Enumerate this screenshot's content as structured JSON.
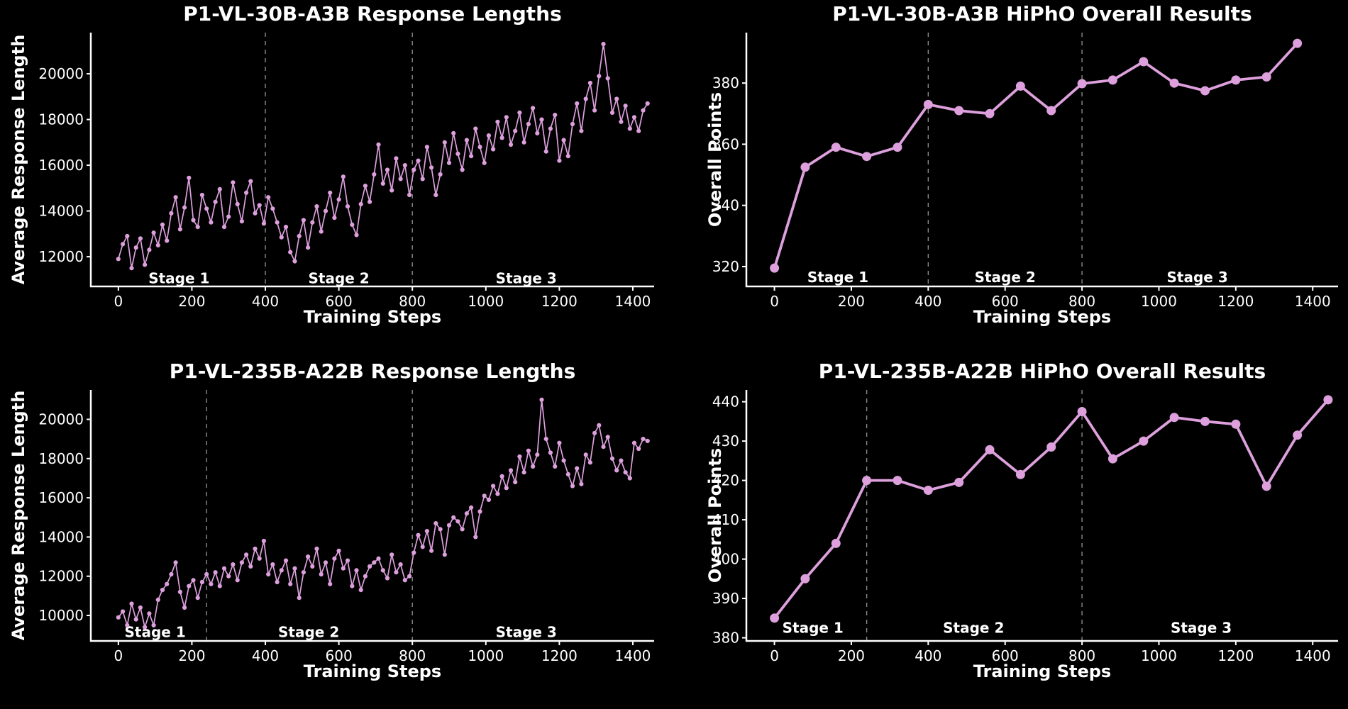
{
  "figure": {
    "background": "#000000",
    "text_color": "#ffffff",
    "accent_color": "#DDA0DD",
    "divider_color": "#8a8a8a"
  },
  "chart_data": [
    {
      "type": "line",
      "title": "P1-VL-30B-A3B Response Lengths",
      "xlabel": "Training Steps",
      "ylabel": "Average Response Length",
      "line_color": "#DDA0DD",
      "divider_color": "#8a8a8a",
      "grid": false,
      "x_ticks": [
        0,
        200,
        400,
        600,
        800,
        1000,
        1200,
        1400
      ],
      "y_ticks": [
        12000,
        14000,
        16000,
        18000,
        20000
      ],
      "xlim": [
        -75,
        1458
      ],
      "ylim": [
        10700,
        21800
      ],
      "stage_lines": [
        400,
        800
      ],
      "stage_labels": [
        {
          "text": "Stage 1",
          "x": 165,
          "y": 11050
        },
        {
          "text": "Stage 2",
          "x": 600,
          "y": 11050
        },
        {
          "text": "Stage 3",
          "x": 1110,
          "y": 11050
        }
      ],
      "marker_radius": 3.1,
      "line_width": 1.7,
      "x_start": 0,
      "x_step": 12,
      "values": [
        11900,
        12550,
        12900,
        11500,
        12400,
        12800,
        11650,
        12300,
        13050,
        12500,
        13400,
        12700,
        13900,
        14600,
        13200,
        14150,
        15450,
        13600,
        13300,
        14700,
        14100,
        13500,
        14400,
        14950,
        13300,
        13750,
        15250,
        14300,
        13550,
        14800,
        15300,
        13900,
        14250,
        13450,
        14600,
        14100,
        13500,
        12850,
        13300,
        12200,
        11800,
        12900,
        13600,
        12400,
        13500,
        14200,
        13100,
        14000,
        14800,
        13700,
        14500,
        15500,
        14200,
        13400,
        12950,
        14300,
        15100,
        14400,
        15600,
        16900,
        15200,
        15800,
        14900,
        16300,
        15400,
        16000,
        14700,
        15800,
        16200,
        15400,
        16800,
        15900,
        14700,
        15600,
        17000,
        16100,
        17400,
        16500,
        15800,
        17100,
        16400,
        17600,
        16800,
        16100,
        17300,
        16700,
        17900,
        17200,
        18100,
        16900,
        17500,
        18300,
        17000,
        17800,
        18500,
        17400,
        18000,
        16600,
        17600,
        18200,
        16200,
        17100,
        16400,
        17800,
        18700,
        17500,
        18900,
        19600,
        18400,
        19900,
        21300,
        19800,
        18300,
        18900,
        17900,
        18600,
        17600,
        18100,
        17500,
        18400,
        18700
      ]
    },
    {
      "type": "line",
      "title": "P1-VL-30B-A3B HiPhO Overall Results",
      "xlabel": "Training Steps",
      "ylabel": "Overall Points",
      "line_color": "#DDA0DD",
      "divider_color": "#8a8a8a",
      "grid": false,
      "x_ticks": [
        0,
        200,
        400,
        600,
        800,
        1000,
        1200,
        1400
      ],
      "y_ticks": [
        320,
        340,
        360,
        380
      ],
      "xlim": [
        -73,
        1466
      ],
      "ylim": [
        313.5,
        396.5
      ],
      "stage_lines": [
        400,
        800
      ],
      "stage_labels": [
        {
          "text": "Stage 1",
          "x": 165,
          "y": 316.5
        },
        {
          "text": "Stage 2",
          "x": 600,
          "y": 316.5
        },
        {
          "text": "Stage 3",
          "x": 1100,
          "y": 316.5
        }
      ],
      "marker_radius": 6.5,
      "line_width": 3.8,
      "x": [
        0,
        80,
        160,
        240,
        320,
        400,
        480,
        560,
        640,
        720,
        800,
        880,
        960,
        1040,
        1120,
        1200,
        1280,
        1360
      ],
      "values": [
        319.5,
        352.5,
        359,
        356,
        359,
        373,
        371,
        370,
        379,
        371,
        379.8,
        381,
        387,
        380,
        377.5,
        381,
        382,
        393
      ]
    },
    {
      "type": "line",
      "title": "P1-VL-235B-A22B Response Lengths",
      "xlabel": "Training Steps",
      "ylabel": "Average Response Length",
      "line_color": "#DDA0DD",
      "divider_color": "#8a8a8a",
      "grid": false,
      "x_ticks": [
        0,
        200,
        400,
        600,
        800,
        1000,
        1200,
        1400
      ],
      "y_ticks": [
        10000,
        12000,
        14000,
        16000,
        18000,
        20000
      ],
      "xlim": [
        -75,
        1458
      ],
      "ylim": [
        8700,
        21500
      ],
      "stage_lines": [
        240,
        800
      ],
      "stage_labels": [
        {
          "text": "Stage 1",
          "x": 100,
          "y": 9150
        },
        {
          "text": "Stage 2",
          "x": 518,
          "y": 9150
        },
        {
          "text": "Stage 3",
          "x": 1110,
          "y": 9150
        }
      ],
      "marker_radius": 3.1,
      "line_width": 1.7,
      "x_start": 0,
      "x_step": 12,
      "values": [
        9900,
        10200,
        9500,
        10600,
        9800,
        10400,
        9400,
        10100,
        9500,
        10800,
        11300,
        11600,
        12100,
        12700,
        11200,
        10400,
        11500,
        11800,
        10900,
        11700,
        12100,
        11600,
        12200,
        11500,
        12400,
        12000,
        12600,
        11800,
        12700,
        13100,
        12500,
        13400,
        12900,
        13800,
        12100,
        12600,
        11700,
        12300,
        12800,
        11600,
        12400,
        10900,
        12200,
        13000,
        12500,
        13400,
        12100,
        12700,
        11600,
        12900,
        13300,
        12400,
        12800,
        11500,
        12300,
        11300,
        12000,
        12500,
        12700,
        12900,
        12300,
        11900,
        13100,
        12200,
        12600,
        11800,
        12000,
        13200,
        14100,
        13500,
        14300,
        13300,
        14700,
        14400,
        13100,
        14600,
        15000,
        14800,
        14400,
        15200,
        15500,
        14000,
        15300,
        16100,
        15900,
        16600,
        16200,
        17100,
        16500,
        17400,
        16800,
        18100,
        17300,
        18400,
        17600,
        18200,
        21000,
        19000,
        18300,
        17600,
        18800,
        17900,
        17200,
        16600,
        17500,
        16700,
        18200,
        17800,
        19300,
        19700,
        18600,
        19100,
        18000,
        17400,
        17900,
        17300,
        17000,
        18800,
        18500,
        19000,
        18900
      ]
    },
    {
      "type": "line",
      "title": "P1-VL-235B-A22B HiPhO Overall Results",
      "xlabel": "Training Steps",
      "ylabel": "Overall Points",
      "line_color": "#DDA0DD",
      "divider_color": "#8a8a8a",
      "grid": false,
      "x_ticks": [
        0,
        200,
        400,
        600,
        800,
        1000,
        1200,
        1400
      ],
      "y_ticks": [
        380,
        390,
        400,
        410,
        420,
        430,
        440
      ],
      "xlim": [
        -73,
        1466
      ],
      "ylim": [
        379.2,
        443
      ],
      "stage_lines": [
        240,
        800
      ],
      "stage_labels": [
        {
          "text": "Stage 1",
          "x": 100,
          "y": 382.5
        },
        {
          "text": "Stage 2",
          "x": 518,
          "y": 382.5
        },
        {
          "text": "Stage 3",
          "x": 1110,
          "y": 382.5
        }
      ],
      "marker_radius": 6.5,
      "line_width": 3.8,
      "x": [
        0,
        80,
        160,
        240,
        320,
        400,
        480,
        560,
        640,
        720,
        800,
        880,
        960,
        1040,
        1120,
        1200,
        1280,
        1360,
        1440
      ],
      "values": [
        385,
        395,
        404,
        420,
        420,
        417.5,
        419.5,
        427.8,
        421.5,
        428.5,
        437.5,
        425.5,
        430,
        436,
        435,
        434.3,
        418.5,
        431.5,
        440.5
      ]
    }
  ]
}
